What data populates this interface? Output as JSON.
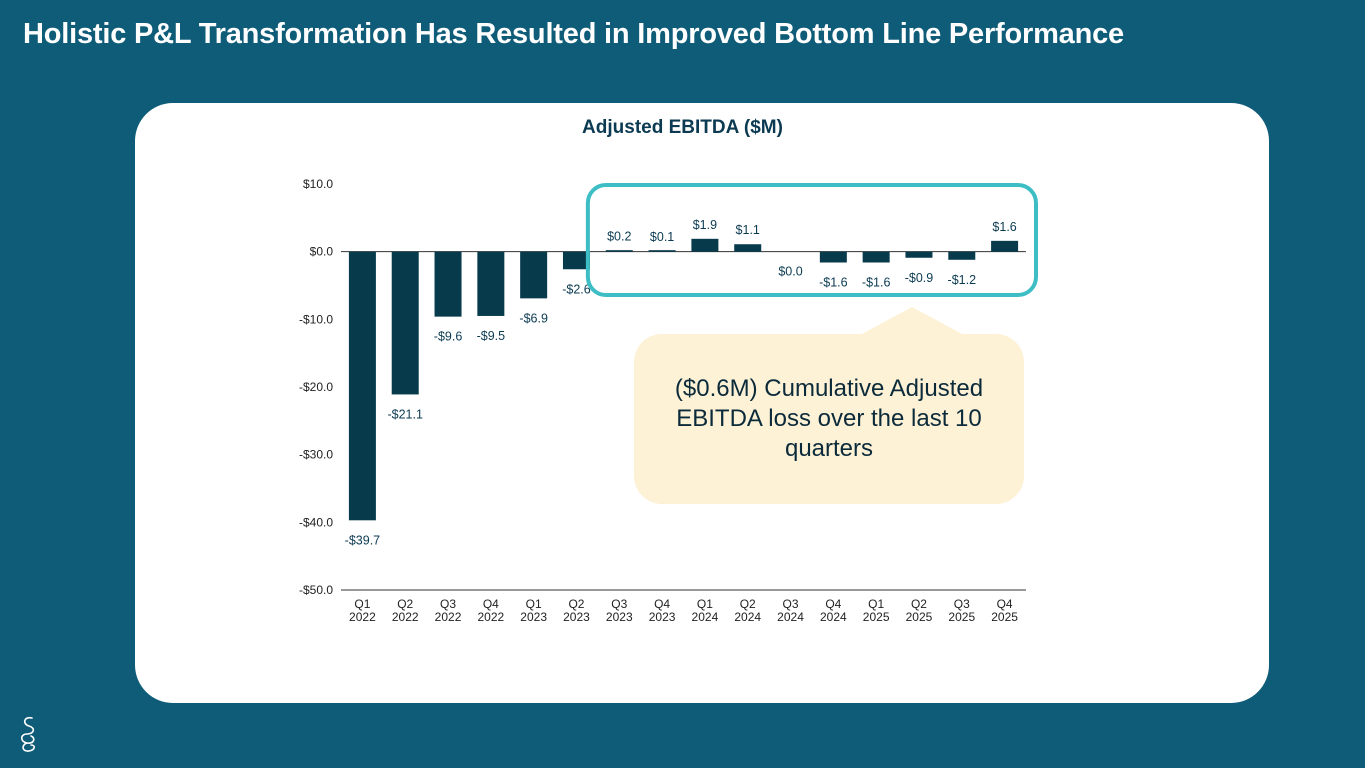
{
  "page": {
    "title": "Holistic P&L Transformation Has Resulted in Improved Bottom Line Performance",
    "callout": "($0.6M) Cumulative Adjusted EBITDA loss over the last 10 quarters",
    "logo_icon": "swirl-logo-icon"
  },
  "colors": {
    "background": "#0f5c79",
    "bar": "#073b4c",
    "highlight": "#3dbdc4",
    "callout": "#fdf1d6"
  },
  "chart_data": {
    "type": "bar",
    "title": "Adjusted EBITDA ($M)",
    "xlabel": "",
    "ylabel": "",
    "ylim": [
      -50,
      10
    ],
    "y_ticks": [
      10,
      0,
      -10,
      -20,
      -30,
      -40,
      -50
    ],
    "y_tick_labels": [
      "$10.0",
      "$0.0",
      "-$10.0",
      "-$20.0",
      "-$30.0",
      "-$40.0",
      "-$50.0"
    ],
    "categories": [
      "Q1 2022",
      "Q2 2022",
      "Q3 2022",
      "Q4 2022",
      "Q1 2023",
      "Q2 2023",
      "Q3 2023",
      "Q4 2023",
      "Q1 2024",
      "Q2 2024",
      "Q3 2024",
      "Q4 2024",
      "Q1 2025",
      "Q2 2025",
      "Q3 2025",
      "Q4 2025"
    ],
    "category_lines": [
      [
        "Q1",
        "2022"
      ],
      [
        "Q2",
        "2022"
      ],
      [
        "Q3",
        "2022"
      ],
      [
        "Q4",
        "2022"
      ],
      [
        "Q1",
        "2023"
      ],
      [
        "Q2",
        "2023"
      ],
      [
        "Q3",
        "2023"
      ],
      [
        "Q4",
        "2023"
      ],
      [
        "Q1",
        "2024"
      ],
      [
        "Q2",
        "2024"
      ],
      [
        "Q3",
        "2024"
      ],
      [
        "Q4",
        "2024"
      ],
      [
        "Q1",
        "2025"
      ],
      [
        "Q2",
        "2025"
      ],
      [
        "Q3",
        "2025"
      ],
      [
        "Q4",
        "2025"
      ]
    ],
    "values": [
      -39.7,
      -21.1,
      -9.6,
      -9.5,
      -6.9,
      -2.6,
      0.2,
      0.1,
      1.9,
      1.1,
      0.0,
      -1.6,
      -1.6,
      -0.9,
      -1.2,
      1.6
    ],
    "data_labels": [
      "-$39.7",
      "-$21.1",
      "-$9.6",
      "-$9.5",
      "-$6.9",
      "-$2.6",
      "$0.2",
      "$0.1",
      "$1.9",
      "$1.1",
      "$0.0",
      "-$1.6",
      "-$1.6",
      "-$0.9",
      "-$1.2",
      "$1.6"
    ],
    "highlight_range": [
      "Q3 2023",
      "Q4 2025"
    ]
  }
}
